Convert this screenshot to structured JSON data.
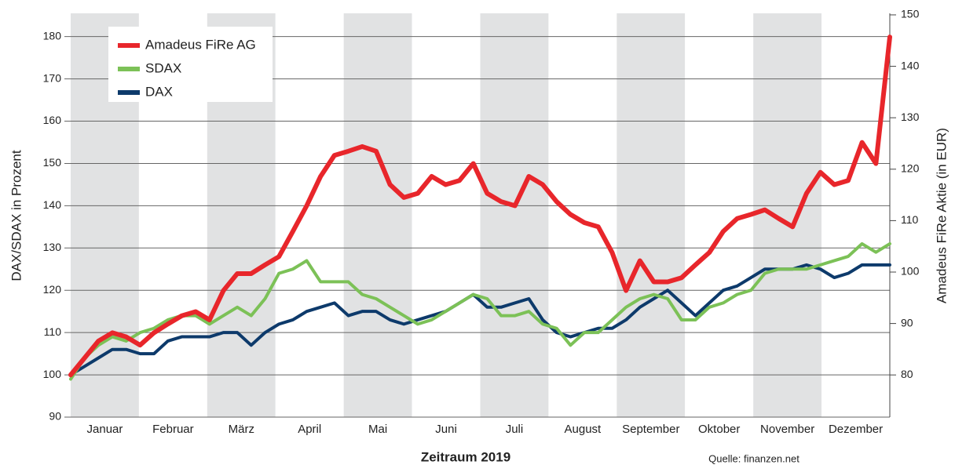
{
  "chart_data": {
    "type": "line",
    "x_labels": [
      "Januar",
      "Februar",
      "März",
      "April",
      "Mai",
      "Juni",
      "Juli",
      "August",
      "September",
      "Oktober",
      "November",
      "Dezember"
    ],
    "ylabel": "DAX/SDAX in Prozent",
    "y2label": "Amadeus FiRe Aktie (in EUR)",
    "xlabel": "Zeitraum 2019",
    "source": "Quelle: finanzen.net",
    "ylim": [
      90,
      185.5
    ],
    "yticks": [
      90,
      100,
      110,
      120,
      130,
      140,
      150,
      160,
      170,
      180
    ],
    "y2lim": [
      71.8,
      150.3
    ],
    "y2ticks": [
      80,
      90,
      100,
      110,
      120,
      130,
      140,
      150
    ],
    "grid": true,
    "legend": "upper left",
    "series": [
      {
        "name": "Amadeus FiRe AG",
        "color": "#e8262b",
        "axis": "y2",
        "values": [
          80,
          83.3,
          86.6,
          88.2,
          87.4,
          85.8,
          88.2,
          89.9,
          91.5,
          92.3,
          90.7,
          96.4,
          99.7,
          99.7,
          101.4,
          103,
          107.9,
          112.9,
          118.6,
          122.7,
          123.5,
          124.4,
          123.5,
          117,
          114.5,
          115.3,
          118.6,
          117,
          117.8,
          121.1,
          115.3,
          113.7,
          112.9,
          118.6,
          117,
          113.7,
          111.2,
          109.6,
          108.8,
          103.8,
          96.4,
          102.2,
          98.1,
          98.1,
          98.9,
          101.4,
          103.8,
          107.9,
          110.4,
          111.2,
          112.1,
          110.4,
          108.8,
          115.3,
          119.4,
          117,
          117.8,
          125.2,
          121.1,
          145.7
        ]
      },
      {
        "name": "SDAX",
        "color": "#7cc157",
        "values": [
          99,
          104,
          107,
          109,
          108,
          110,
          111,
          113,
          114,
          114,
          112,
          114,
          116,
          114,
          118,
          124,
          125,
          127,
          122,
          122,
          122,
          119,
          118,
          116,
          114,
          112,
          113,
          115,
          117,
          119,
          118,
          114,
          114,
          115,
          112,
          111,
          107,
          110,
          110,
          113,
          116,
          118,
          119,
          118,
          113,
          113,
          116,
          117,
          119,
          120,
          124,
          125,
          125,
          125,
          126,
          127,
          128,
          131,
          129,
          131
        ]
      },
      {
        "name": "DAX",
        "color": "#0d3a6b",
        "values": [
          100,
          102,
          104,
          106,
          106,
          105,
          105,
          108,
          109,
          109,
          109,
          110,
          110,
          107,
          110,
          112,
          113,
          115,
          116,
          117,
          114,
          115,
          115,
          113,
          112,
          113,
          114,
          115,
          117,
          119,
          116,
          116,
          117,
          118,
          113,
          110,
          109,
          110,
          111,
          111,
          113,
          116,
          118,
          120,
          117,
          114,
          117,
          120,
          121,
          123,
          125,
          125,
          125,
          126,
          125,
          123,
          124,
          126,
          126,
          126
        ]
      }
    ]
  }
}
